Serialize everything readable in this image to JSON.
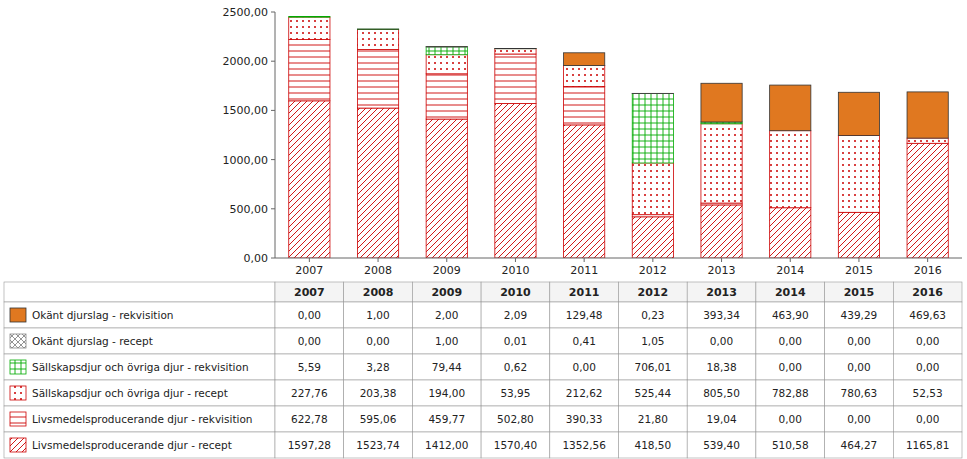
{
  "chart_data": {
    "type": "bar",
    "stacked": true,
    "grid": false,
    "categories": [
      "2007",
      "2008",
      "2009",
      "2010",
      "2011",
      "2012",
      "2013",
      "2014",
      "2015",
      "2016"
    ],
    "ylim": [
      0,
      2500
    ],
    "yticks": [
      {
        "value": 0,
        "label": "0,00"
      },
      {
        "value": 500,
        "label": "500,00"
      },
      {
        "value": 1000,
        "label": "1000,00"
      },
      {
        "value": 1500,
        "label": "1500,00"
      },
      {
        "value": 2000,
        "label": "2000,00"
      },
      {
        "value": 2500,
        "label": "2500,00"
      }
    ],
    "series": [
      {
        "name": "Livsmedelsproducerande djur - recept",
        "color": "#cc0000",
        "values": [
          1597.28,
          1523.74,
          1412.0,
          1570.4,
          1352.56,
          418.5,
          539.4,
          510.58,
          464.27,
          1165.81
        ],
        "value_labels": [
          "1597,28",
          "1523,74",
          "1412,00",
          "1570,40",
          "1352,56",
          "418,50",
          "539,40",
          "510,58",
          "464,27",
          "1165,81"
        ]
      },
      {
        "name": "Livsmedelsproducerande djur - rekvisition",
        "color": "#cc0000",
        "values": [
          622.78,
          595.06,
          459.77,
          502.8,
          390.33,
          21.8,
          19.04,
          0.0,
          0.0,
          0.0
        ],
        "value_labels": [
          "622,78",
          "595,06",
          "459,77",
          "502,80",
          "390,33",
          "21,80",
          "19,04",
          "0,00",
          "0,00",
          "0,00"
        ]
      },
      {
        "name": "Sällskapsdjur och övriga djur - recept",
        "color": "#cc0000",
        "values": [
          227.76,
          203.38,
          194.0,
          53.95,
          212.62,
          525.44,
          805.5,
          782.88,
          780.63,
          52.53
        ],
        "value_labels": [
          "227,76",
          "203,38",
          "194,00",
          "53,95",
          "212,62",
          "525,44",
          "805,50",
          "782,88",
          "780,63",
          "52,53"
        ]
      },
      {
        "name": "Sällskapsdjur och övriga djur - rekvisition",
        "color": "#00aa00",
        "values": [
          5.59,
          3.28,
          79.44,
          0.62,
          0.0,
          706.01,
          18.38,
          0.0,
          0.0,
          0.0
        ],
        "value_labels": [
          "5,59",
          "3,28",
          "79,44",
          "0,62",
          "0,00",
          "706,01",
          "18,38",
          "0,00",
          "0,00",
          "0,00"
        ]
      },
      {
        "name": "Okänt djurslag - recept",
        "color": "#888888",
        "values": [
          0.0,
          0.0,
          1.0,
          0.01,
          0.41,
          1.05,
          0.0,
          0.0,
          0.0,
          0.0
        ],
        "value_labels": [
          "0,00",
          "0,00",
          "1,00",
          "0,01",
          "0,41",
          "1,05",
          "0,00",
          "0,00",
          "0,00",
          "0,00"
        ]
      },
      {
        "name": "Okänt djurslag - rekvisition",
        "color": "#e07820",
        "values": [
          0.0,
          1.0,
          2.0,
          2.09,
          129.48,
          0.23,
          393.34,
          463.9,
          439.29,
          469.63
        ],
        "value_labels": [
          "0,00",
          "1,00",
          "2,00",
          "2,09",
          "129,48",
          "0,23",
          "393,34",
          "463,90",
          "439,29",
          "469,63"
        ]
      }
    ]
  }
}
